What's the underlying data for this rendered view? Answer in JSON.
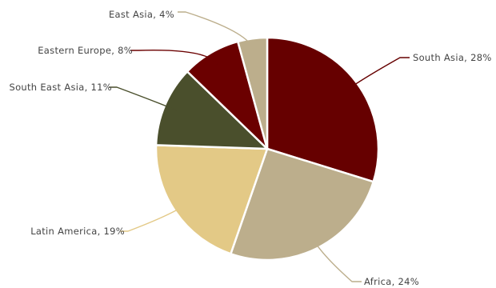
{
  "chart_data": {
    "type": "pie",
    "title": "",
    "start_angle_deg": 0,
    "direction": "clockwise",
    "slices": [
      {
        "label": "South Asia, 28%",
        "name": "South Asia",
        "value": 28,
        "color": "#660000"
      },
      {
        "label": "Africa, 24%",
        "name": "Africa",
        "value": 24,
        "color": "#BCAE8C"
      },
      {
        "label": "Latin America, 19%",
        "name": "Latin America",
        "value": 19,
        "color": "#E3C986"
      },
      {
        "label": "South East Asia, 11%",
        "name": "South East Asia",
        "value": 11,
        "color": "#4A4F2C"
      },
      {
        "label": "Eastern Europe, 8%",
        "name": "Eastern Europe",
        "value": 8,
        "color": "#6B0000"
      },
      {
        "label": "East Asia, 4%",
        "name": "East Asia",
        "value": 4,
        "color": "#BCAE8C"
      }
    ]
  }
}
